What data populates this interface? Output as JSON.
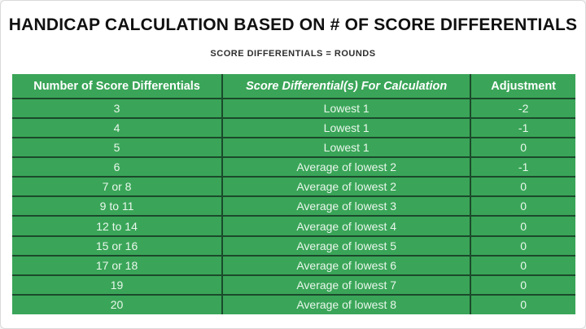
{
  "title": "HANDICAP CALCULATION BASED ON # OF SCORE DIFFERENTIALS",
  "subtitle": "SCORE DIFFERENTIALS = ROUNDS",
  "colors": {
    "table_green": "#3AA558",
    "table_border": "#1B4A2B",
    "header_text": "#FFFFFF",
    "cell_text": "#E9F7EC",
    "title_text": "#101010",
    "subtitle_text": "#2E2E2E",
    "page_border": "#D9D9D9"
  },
  "chart_data": {
    "type": "table",
    "title": "HANDICAP CALCULATION BASED ON # OF SCORE DIFFERENTIALS",
    "subtitle": "SCORE DIFFERENTIALS = ROUNDS",
    "columns": [
      "Number of Score Differentials",
      "Score Differential(s) For Calculation",
      "Adjustment"
    ],
    "rows": [
      [
        "3",
        "Lowest 1",
        "-2"
      ],
      [
        "4",
        "Lowest 1",
        "-1"
      ],
      [
        "5",
        "Lowest 1",
        "0"
      ],
      [
        "6",
        "Average of lowest 2",
        "-1"
      ],
      [
        "7 or 8",
        "Average of lowest 2",
        "0"
      ],
      [
        "9 to 11",
        "Average of lowest 3",
        "0"
      ],
      [
        "12 to 14",
        "Average of lowest 4",
        "0"
      ],
      [
        "15 or 16",
        "Average of lowest 5",
        "0"
      ],
      [
        "17 or 18",
        "Average of lowest 6",
        "0"
      ],
      [
        "19",
        "Average of lowest 7",
        "0"
      ],
      [
        "20",
        "Average of lowest 8",
        "0"
      ]
    ]
  }
}
